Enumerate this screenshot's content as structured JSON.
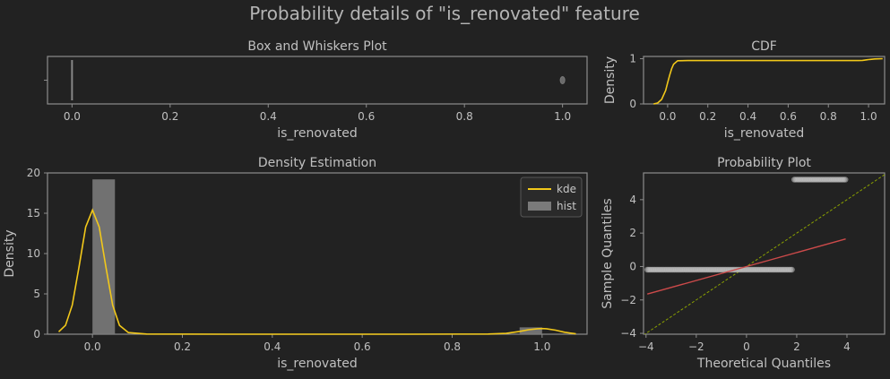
{
  "figure": {
    "title": "Probability details of \"is_renovated\" feature",
    "background": "#222222"
  },
  "chart_data": [
    {
      "id": "box",
      "type": "box",
      "title": "Box and Whiskers Plot",
      "xlabel": "is_renovated",
      "ylabel": "",
      "xlim": [
        -0.05,
        1.05
      ],
      "xticks": [
        "0.0",
        "0.2",
        "0.4",
        "0.6",
        "0.8",
        "1.0"
      ],
      "xtick_values": [
        0,
        0.2,
        0.4,
        0.6,
        0.8,
        1.0
      ],
      "box": {
        "q1": 0,
        "median": 0,
        "q3": 0,
        "whisker_low": 0,
        "whisker_high": 0
      },
      "outliers": [
        1.0
      ],
      "color": "#888888"
    },
    {
      "id": "cdf",
      "type": "line",
      "title": "CDF",
      "xlabel": "is_renovated",
      "ylabel": "Density",
      "xlim": [
        -0.12,
        1.08
      ],
      "ylim": [
        0,
        1.05
      ],
      "xticks": [
        "0.0",
        "0.2",
        "0.4",
        "0.6",
        "0.8",
        "1.0"
      ],
      "xtick_values": [
        0,
        0.2,
        0.4,
        0.6,
        0.8,
        1.0
      ],
      "yticks": [
        "0",
        "1"
      ],
      "ytick_values": [
        0,
        1
      ],
      "x": [
        -0.07,
        -0.05,
        -0.03,
        -0.01,
        0.0,
        0.01,
        0.02,
        0.03,
        0.05,
        0.1,
        0.3,
        0.5,
        0.7,
        0.9,
        0.95,
        0.97,
        0.99,
        1.0,
        1.01,
        1.03,
        1.07
      ],
      "y": [
        0.0,
        0.02,
        0.1,
        0.3,
        0.47,
        0.63,
        0.78,
        0.88,
        0.955,
        0.958,
        0.958,
        0.958,
        0.958,
        0.958,
        0.958,
        0.962,
        0.975,
        0.98,
        0.985,
        0.995,
        1.0
      ],
      "color": "#f2c81a"
    },
    {
      "id": "density",
      "type": "bar+line",
      "title": "Density Estimation",
      "xlabel": "is_renovated",
      "ylabel": "Density",
      "xlim": [
        -0.1,
        1.1
      ],
      "ylim": [
        0,
        20
      ],
      "xticks": [
        "0.0",
        "0.2",
        "0.4",
        "0.6",
        "0.8",
        "1.0"
      ],
      "xtick_values": [
        0,
        0.2,
        0.4,
        0.6,
        0.8,
        1.0
      ],
      "yticks": [
        "0",
        "5",
        "10",
        "15",
        "20"
      ],
      "ytick_values": [
        0,
        5,
        10,
        15,
        20
      ],
      "hist": [
        {
          "x0": 0.0,
          "x1": 0.05,
          "value": 19.2
        },
        {
          "x0": 0.95,
          "x1": 1.0,
          "value": 0.85
        }
      ],
      "kde_x": [
        -0.075,
        -0.06,
        -0.045,
        -0.03,
        -0.015,
        0.0,
        0.015,
        0.03,
        0.045,
        0.06,
        0.08,
        0.12,
        0.3,
        0.5,
        0.7,
        0.88,
        0.92,
        0.95,
        0.97,
        0.99,
        1.0,
        1.01,
        1.03,
        1.05,
        1.075
      ],
      "kde_y": [
        0.3,
        1.1,
        3.6,
        8.3,
        13.3,
        15.4,
        13.3,
        8.3,
        3.6,
        1.1,
        0.2,
        0.02,
        0.0,
        0.0,
        0.0,
        0.02,
        0.1,
        0.35,
        0.56,
        0.68,
        0.7,
        0.68,
        0.5,
        0.25,
        0.05
      ],
      "legend": [
        {
          "label": "kde",
          "kind": "line",
          "color": "#f2c81a"
        },
        {
          "label": "hist",
          "kind": "patch",
          "color": "#7a7a7a"
        }
      ],
      "legend_position": "top-right"
    },
    {
      "id": "probplot",
      "type": "scatter",
      "title": "Probability Plot",
      "xlabel": "Theoretical Quantiles",
      "ylabel": "Sample Quantiles",
      "xlim": [
        -4.1,
        5.5
      ],
      "ylim": [
        -4.05,
        5.6
      ],
      "xticks": [
        "−4",
        "−2",
        "0",
        "2",
        "4"
      ],
      "xtick_values": [
        -4,
        -2,
        0,
        2,
        4
      ],
      "yticks": [
        "−4",
        "−2",
        "0",
        "2",
        "4"
      ],
      "ytick_values": [
        -4,
        -2,
        0,
        2,
        4
      ],
      "points_low": {
        "y": -0.19,
        "x_start": -3.95,
        "x_end": 1.83
      },
      "points_high": {
        "y": 5.2,
        "x_start": 1.9,
        "x_end": 3.95
      },
      "fit_line": {
        "x": [
          -3.95,
          3.95
        ],
        "y": [
          -1.65,
          1.65
        ],
        "color": "#cc4a4a"
      },
      "reference_line": {
        "x": [
          -4.1,
          5.5
        ],
        "y": [
          -4.1,
          5.5
        ],
        "color": "#8aa000"
      },
      "point_color": "#bfbfbf"
    }
  ]
}
